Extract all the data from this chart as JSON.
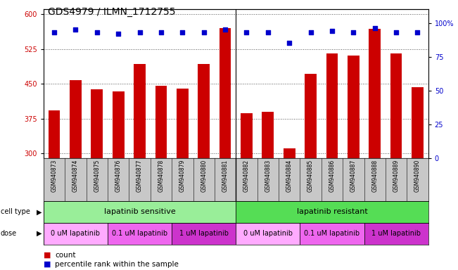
{
  "title": "GDS4979 / ILMN_1712755",
  "samples": [
    "GSM940873",
    "GSM940874",
    "GSM940875",
    "GSM940876",
    "GSM940877",
    "GSM940878",
    "GSM940879",
    "GSM940880",
    "GSM940881",
    "GSM940882",
    "GSM940883",
    "GSM940884",
    "GSM940885",
    "GSM940886",
    "GSM940887",
    "GSM940888",
    "GSM940889",
    "GSM940890"
  ],
  "counts": [
    393,
    457,
    438,
    434,
    492,
    445,
    440,
    492,
    570,
    387,
    390,
    310,
    471,
    515,
    510,
    568,
    515,
    443
  ],
  "percentiles": [
    93,
    95,
    93,
    92,
    93,
    93,
    93,
    93,
    95,
    93,
    93,
    85,
    93,
    94,
    93,
    96,
    93,
    93
  ],
  "bar_color": "#cc0000",
  "dot_color": "#0000cc",
  "ylim_left": [
    290,
    610
  ],
  "yticks_left": [
    300,
    375,
    450,
    525,
    600
  ],
  "ylim_right": [
    0,
    110
  ],
  "yticks_right": [
    0,
    25,
    50,
    75,
    100
  ],
  "cell_type_groups": [
    {
      "label": "lapatinib sensitive",
      "start": 0,
      "end": 9,
      "color": "#99ee99"
    },
    {
      "label": "lapatinib resistant",
      "start": 9,
      "end": 18,
      "color": "#55dd55"
    }
  ],
  "dose_groups": [
    {
      "label": "0 uM lapatinib",
      "start": 0,
      "end": 3,
      "color": "#ffaaff"
    },
    {
      "label": "0.1 uM lapatinib",
      "start": 3,
      "end": 6,
      "color": "#ee66ee"
    },
    {
      "label": "1 uM lapatinib",
      "start": 6,
      "end": 9,
      "color": "#cc33cc"
    },
    {
      "label": "0 uM lapatinib",
      "start": 9,
      "end": 12,
      "color": "#ffaaff"
    },
    {
      "label": "0.1 uM lapatinib",
      "start": 12,
      "end": 15,
      "color": "#ee66ee"
    },
    {
      "label": "1 uM lapatinib",
      "start": 15,
      "end": 18,
      "color": "#cc33cc"
    }
  ],
  "legend_count_color": "#cc0000",
  "legend_dot_color": "#0000cc",
  "grid_color": "#555555",
  "bg_color": "#ffffff",
  "plot_bg_color": "#ffffff",
  "label_color_left": "#cc0000",
  "label_color_right": "#0000cc",
  "title_fontsize": 10,
  "tick_fontsize": 7,
  "sample_fontsize": 5.5,
  "legend_fontsize": 7.5,
  "annotation_fontsize": 8,
  "dose_fontsize": 7
}
